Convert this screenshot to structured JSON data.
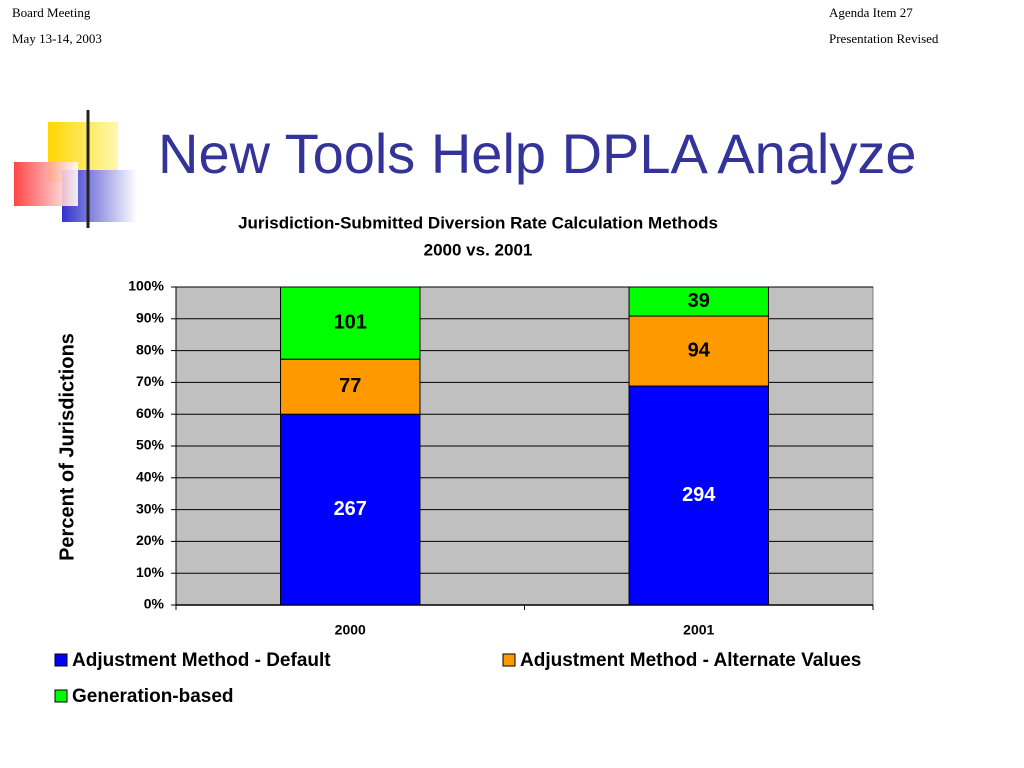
{
  "header": {
    "left": [
      "Board Meeting",
      "May 13-14, 2003"
    ],
    "right": [
      "Agenda Item 27",
      "Presentation Revised"
    ]
  },
  "slide_title": "New Tools Help DPLA Analyze",
  "chart_data": {
    "type": "bar",
    "stacking": "percent",
    "title": [
      "Jurisdiction-Submitted Diversion Rate Calculation Methods",
      "2000 vs. 2001"
    ],
    "y_label": "Percent of Jurisdictions",
    "categories": [
      "2000",
      "2001"
    ],
    "series": [
      {
        "name": "Adjustment Method - Default",
        "color": "#0000ff",
        "label_color": "#ffffff",
        "values": [
          267,
          294
        ]
      },
      {
        "name": "Adjustment Method - Alternate Values",
        "color": "#ff9900",
        "label_color": "#000000",
        "values": [
          77,
          94
        ]
      },
      {
        "name": "Generation-based",
        "color": "#00ff00",
        "label_color": "#000000",
        "values": [
          101,
          39
        ]
      }
    ],
    "ylim": [
      0,
      100
    ],
    "yticks": [
      {
        "value": 0,
        "label": "0%"
      },
      {
        "value": 10,
        "label": "10%"
      },
      {
        "value": 20,
        "label": "20%"
      },
      {
        "value": 30,
        "label": "30%"
      },
      {
        "value": 40,
        "label": "40%"
      },
      {
        "value": 50,
        "label": "50%"
      },
      {
        "value": 60,
        "label": "60%"
      },
      {
        "value": 70,
        "label": "70%"
      },
      {
        "value": 80,
        "label": "80%"
      },
      {
        "value": 90,
        "label": "90%"
      },
      {
        "value": 100,
        "label": "100%"
      }
    ],
    "grid": true,
    "plot_background": "#c0c0c0",
    "legend": "bottom"
  }
}
